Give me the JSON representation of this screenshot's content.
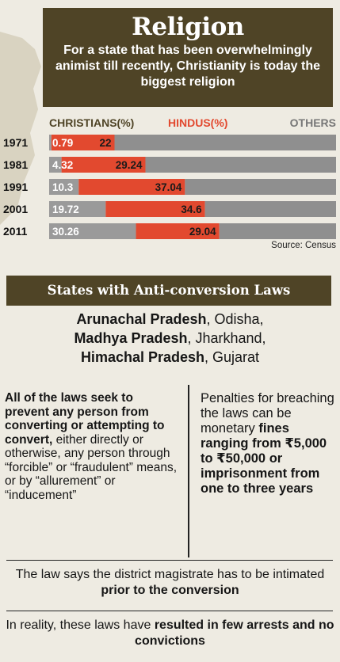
{
  "header": {
    "title": "Religion",
    "subtitle": "For a state that has been overwhelmingly animist till recently, Christianity is today the biggest religion"
  },
  "colors": {
    "christians": "#9a9a9a",
    "hindus": "#e2492f",
    "others": "#8f8f8f",
    "banner": "#4f4426"
  },
  "chart_data": {
    "type": "bar",
    "stacked": true,
    "categories": [
      "1971",
      "1981",
      "1991",
      "2001",
      "2011"
    ],
    "series": [
      {
        "name": "CHRISTIANS(%)",
        "values": [
          0.79,
          4.32,
          10.3,
          19.72,
          30.26
        ]
      },
      {
        "name": "HINDUS(%)",
        "values": [
          22,
          29.24,
          37.04,
          34.6,
          29.04
        ]
      },
      {
        "name": "OTHERS",
        "values": [
          77.21,
          66.44,
          52.66,
          45.68,
          40.7
        ]
      }
    ],
    "data_labels": [
      [
        "0.79",
        "22"
      ],
      [
        "4.32",
        "29.24"
      ],
      [
        "10.3",
        "37.04"
      ],
      [
        "19.72",
        "34.6"
      ],
      [
        "30.26",
        "29.04"
      ]
    ],
    "source": "Source: Census",
    "xlim": [
      0,
      100
    ]
  },
  "laws": {
    "banner": "States with Anti-conversion Laws",
    "states_line1_bold": "Arunachal Pradesh",
    "states_line1_rest": ", Odisha,",
    "states_line2_bold": "Madhya Pradesh",
    "states_line2_rest": ", Jharkhand,",
    "states_line3_bold": "Himachal Pradesh",
    "states_line3_rest": ", Gujarat",
    "left_bold": "All of the laws seek to prevent any person from converting or attempting to convert,",
    "left_rest": " either directly or otherwise, any person through “forcible” or “fraudulent” means, or by “allurement” or “inducement”",
    "right_pre": "Penalties for breaching the laws can be monetary ",
    "right_bold": "fines ranging from ₹5,000 to ₹50,000 or imprisonment from one to three years",
    "para1_pre": "The law says the district magistrate has to be intimated ",
    "para1_bold": "prior to the conversion",
    "para2_pre": "In reality, these laws have ",
    "para2_bold": "resulted in few arrests and no convictions"
  }
}
